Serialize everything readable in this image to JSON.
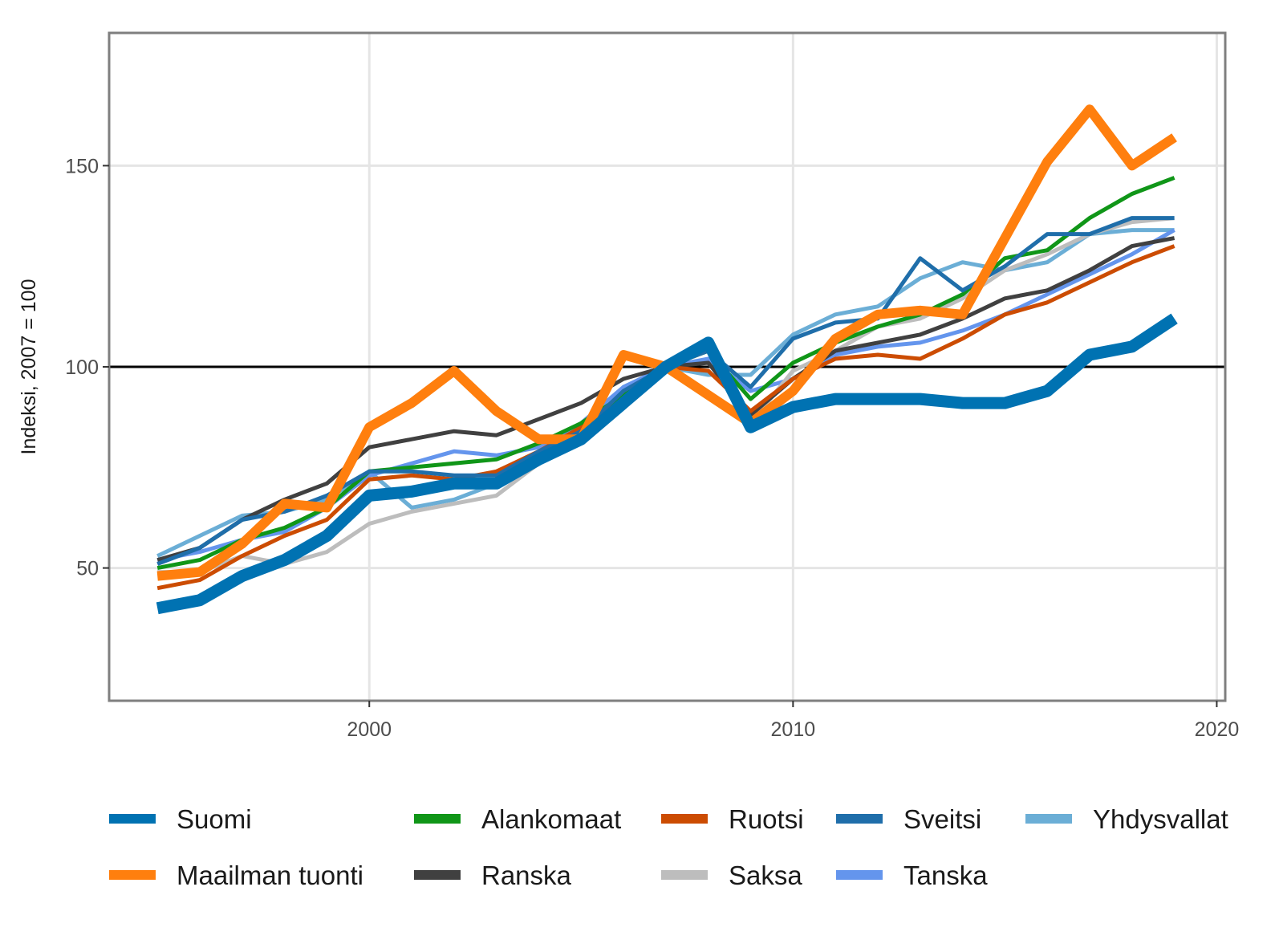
{
  "chart_data": {
    "type": "line",
    "xlabel": "",
    "ylabel": "Indeksi, 2007 = 100",
    "xlim": [
      1993.86,
      2020.2
    ],
    "ylim": [
      17,
      183
    ],
    "x_ticks": [
      2000,
      2010,
      2020
    ],
    "x_tick_labels": [
      "2000",
      "2010",
      "2020"
    ],
    "y_ticks": [
      50,
      100,
      150
    ],
    "y_tick_labels": [
      "50",
      "100",
      "150"
    ],
    "reference_line": 100,
    "grid": true,
    "legend_position": "bottom",
    "x": [
      1995,
      1996,
      1997,
      1998,
      1999,
      2000,
      2001,
      2002,
      2003,
      2004,
      2005,
      2006,
      2007,
      2008,
      2009,
      2010,
      2011,
      2012,
      2013,
      2014,
      2015,
      2016,
      2017,
      2018,
      2019
    ],
    "series": [
      {
        "name": "Yhdysvallat",
        "color": "#6baed6",
        "values": [
          53,
          58,
          63,
          64,
          67,
          74,
          65,
          67,
          71,
          78,
          84,
          95,
          100,
          98,
          98,
          108,
          113,
          115,
          122,
          126,
          124,
          126,
          133,
          134,
          134
        ]
      },
      {
        "name": "Tanska",
        "color": "#6495ed",
        "values": [
          52,
          54,
          57,
          59,
          65,
          73,
          76,
          79,
          78,
          80,
          86,
          95,
          100,
          102,
          94,
          97,
          103,
          105,
          106,
          109,
          113,
          118,
          123,
          128,
          134
        ]
      },
      {
        "name": "Saksa",
        "color": "#bdbdbd",
        "values": [
          49,
          49,
          53,
          51,
          54,
          61,
          64,
          66,
          68,
          76,
          81,
          93,
          100,
          104,
          86,
          99,
          104,
          110,
          112,
          117,
          124,
          128,
          133,
          136,
          137
        ]
      },
      {
        "name": "Ranska",
        "color": "#404040",
        "values": [
          52,
          55,
          62,
          67,
          71,
          80,
          82,
          84,
          83,
          87,
          91,
          97,
          100,
          101,
          88,
          97,
          104,
          106,
          108,
          112,
          117,
          119,
          124,
          130,
          132
        ]
      },
      {
        "name": "Ruotsi",
        "color": "#cc4c02",
        "values": [
          45,
          47,
          53,
          58,
          62,
          72,
          73,
          72,
          74,
          79,
          85,
          93,
          100,
          99,
          89,
          97,
          102,
          103,
          102,
          107,
          113,
          116,
          121,
          126,
          130
        ]
      },
      {
        "name": "Alankomaat",
        "color": "#109618",
        "values": [
          50,
          52,
          57,
          60,
          65,
          74,
          75,
          76,
          77,
          81,
          86,
          93,
          100,
          104,
          92,
          101,
          106,
          110,
          113,
          118,
          127,
          129,
          137,
          143,
          147
        ]
      },
      {
        "name": "Sveitsi",
        "color": "#1f6eaa",
        "values": [
          51,
          55,
          62,
          64,
          68,
          74,
          74,
          73,
          73,
          79,
          84,
          94,
          100,
          104,
          95,
          107,
          111,
          112,
          127,
          119,
          125,
          133,
          133,
          137,
          137
        ]
      },
      {
        "name": "Maailman tuonti",
        "color": "#ff7f0e",
        "values": [
          48,
          49,
          56,
          66,
          65,
          85,
          91,
          99,
          89,
          82,
          82,
          103,
          100,
          93,
          86,
          94,
          107,
          113,
          114,
          113,
          132,
          151,
          164,
          150,
          157
        ]
      },
      {
        "name": "Suomi",
        "color": "#0072b2",
        "values": [
          40,
          42,
          48,
          52,
          58,
          68,
          69,
          71,
          71,
          77,
          82,
          91,
          100,
          106,
          85,
          90,
          92,
          92,
          92,
          91,
          91,
          94,
          103,
          105,
          112
        ]
      }
    ],
    "legend": [
      {
        "name": "Suomi",
        "color": "#0072b2"
      },
      {
        "name": "Alankomaat",
        "color": "#109618"
      },
      {
        "name": "Ruotsi",
        "color": "#cc4c02"
      },
      {
        "name": "Sveitsi",
        "color": "#1f6eaa"
      },
      {
        "name": "Yhdysvallat",
        "color": "#6baed6"
      },
      {
        "name": "Maailman tuonti",
        "color": "#ff7f0e"
      },
      {
        "name": "Ranska",
        "color": "#404040"
      },
      {
        "name": "Saksa",
        "color": "#bdbdbd"
      },
      {
        "name": "Tanska",
        "color": "#6495ed"
      }
    ],
    "colors": {
      "panel_border": "#7f7f7f",
      "grid": "#e5e5e5",
      "reference_line": "#000000",
      "background": "#ffffff"
    }
  }
}
